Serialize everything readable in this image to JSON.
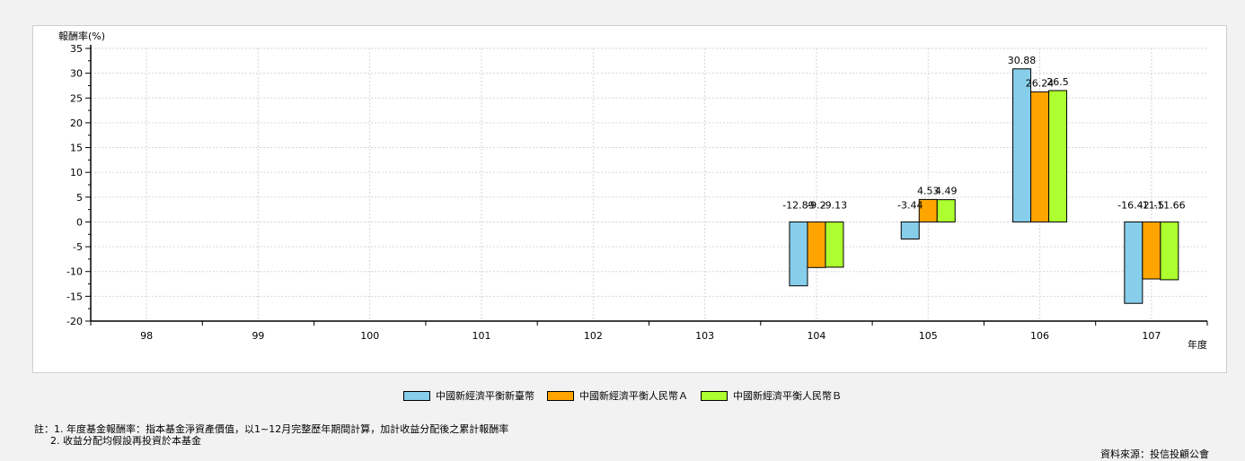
{
  "chart_data": {
    "type": "bar",
    "ylabel": "報酬率(%)",
    "xlabel": "年度",
    "categories": [
      "98",
      "99",
      "100",
      "101",
      "102",
      "103",
      "104",
      "105",
      "106",
      "107"
    ],
    "ylim": [
      -20,
      35
    ],
    "yticks": [
      "35",
      "30",
      "25",
      "20",
      "15",
      "10",
      "5",
      "0",
      "-5",
      "-10",
      "-15",
      "-20"
    ],
    "grid": true,
    "legend_position": "bottom",
    "series": [
      {
        "name": "中國新經濟平衡新臺幣",
        "color": "#87ceeb",
        "values": [
          null,
          null,
          null,
          null,
          null,
          null,
          -12.89,
          -3.44,
          30.88,
          -16.42
        ],
        "labels": [
          "",
          "",
          "",
          "",
          "",
          "",
          "-12.89",
          "-3.44",
          "30.88",
          "-16.42"
        ]
      },
      {
        "name": "中國新經濟平衡人民幣Ａ",
        "color": "#ffa500",
        "values": [
          null,
          null,
          null,
          null,
          null,
          null,
          -9.2,
          4.53,
          26.24,
          -11.5
        ],
        "labels": [
          "",
          "",
          "",
          "",
          "",
          "",
          "-9.2",
          "4.53",
          "26.24",
          "-11.5"
        ]
      },
      {
        "name": "中國新經濟平衡人民幣Ｂ",
        "color": "#adff2f",
        "values": [
          null,
          null,
          null,
          null,
          null,
          null,
          -9.13,
          4.49,
          26.5,
          -11.66
        ],
        "labels": [
          "",
          "",
          "",
          "",
          "",
          "",
          "-9.13",
          "4.49",
          "26.5",
          "-11.66"
        ]
      }
    ]
  },
  "notes": {
    "line1": "註：1. 年度基金報酬率：指本基金淨資產價值，以1~12月完整歷年期間計算，加計收益分配後之累計報酬率",
    "line2": "2. 收益分配均假設再投資於本基金"
  },
  "source": "資料來源：投信投顧公會"
}
